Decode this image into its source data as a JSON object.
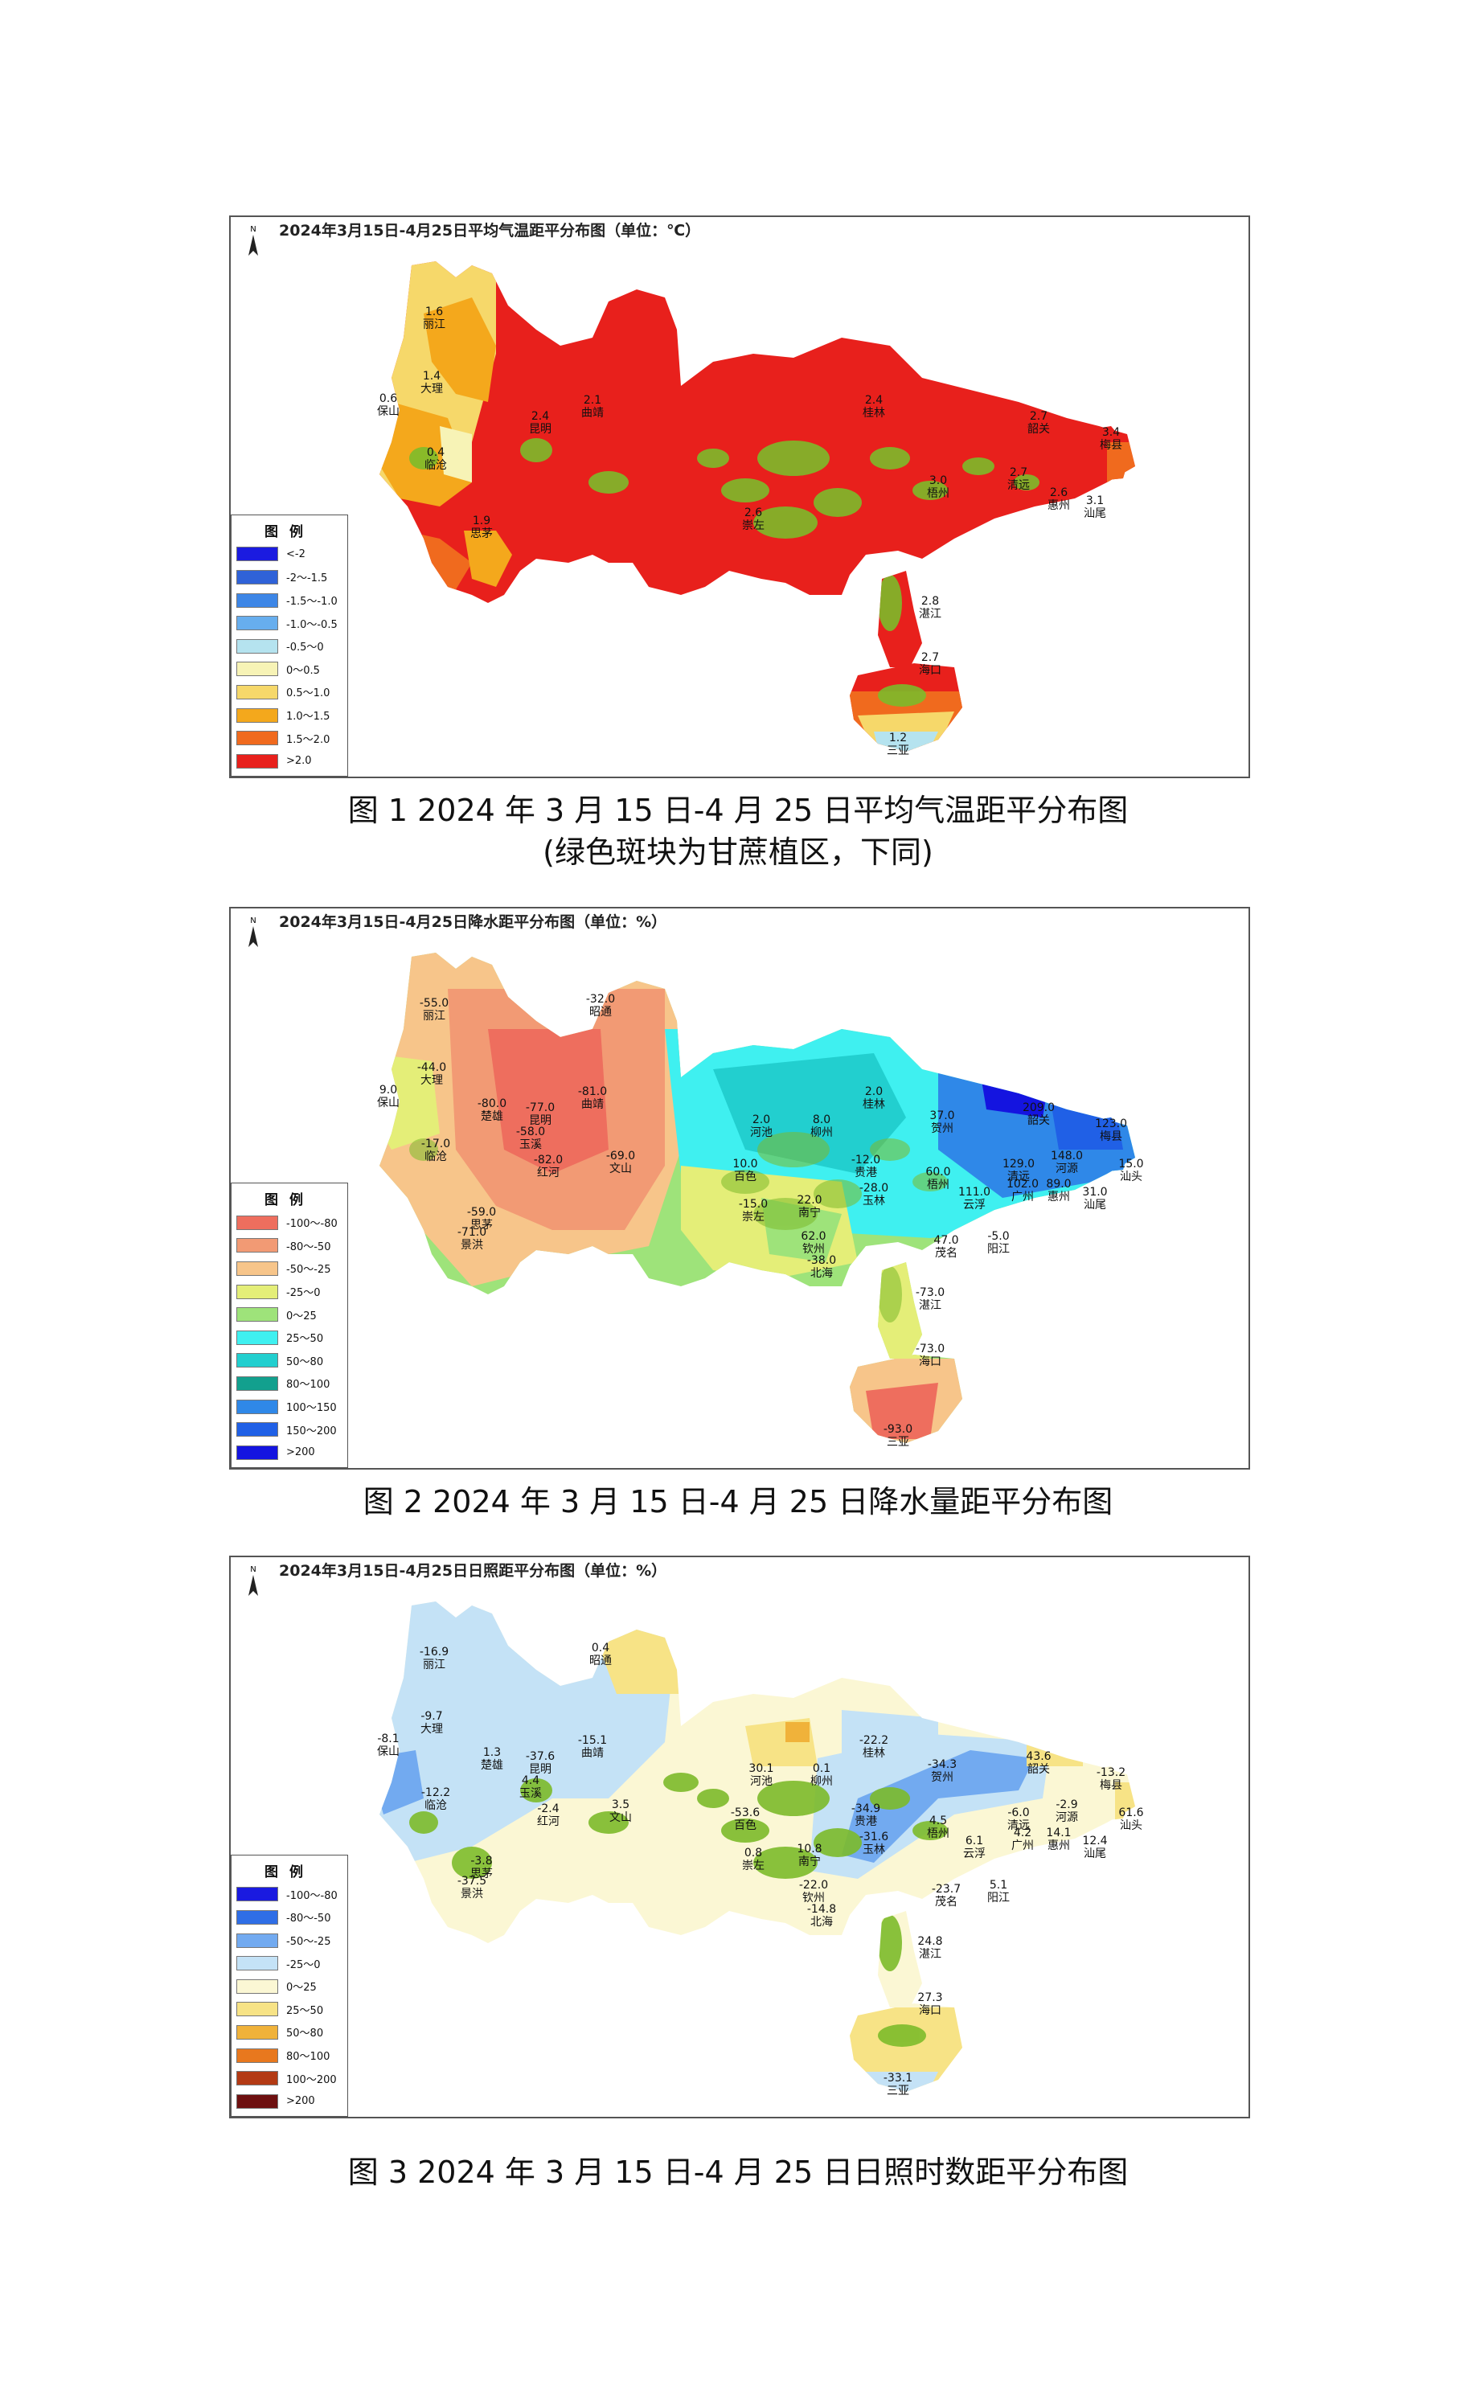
{
  "figures": [
    {
      "id": "temp",
      "map_title": "2024年3月15日-4月25日平均气温距平分布图（单位：℃）",
      "caption_lines": [
        "图 1  2024 年 3 月 15 日-4 月 25 日平均气温距平分布图",
        "(绿色斑块为甘蔗植区，下同)"
      ],
      "north_label": "N",
      "legend_title": "图例",
      "legend": [
        {
          "label": "<-2",
          "color": "#1b1be0"
        },
        {
          "label": "-2～-1.5",
          "color": "#2f62d8"
        },
        {
          "label": "-1.5～-1.0",
          "color": "#3d86e6"
        },
        {
          "label": "-1.0～-0.5",
          "color": "#67aeee"
        },
        {
          "label": "-0.5～0",
          "color": "#b5e3ef"
        },
        {
          "label": "0～0.5",
          "color": "#f7f3b6"
        },
        {
          "label": "0.5～1.0",
          "color": "#f6d86a"
        },
        {
          "label": "1.0～1.5",
          "color": "#f4a81c"
        },
        {
          "label": "1.5～2.0",
          "color": "#f06a1e"
        },
        {
          "label": ">2.0",
          "color": "#e8201c"
        }
      ],
      "stations": [
        {
          "v": "1.6",
          "n": "丽江"
        },
        {
          "v": "1.4",
          "n": "大理"
        },
        {
          "v": "0.6",
          "n": "保山"
        },
        {
          "v": "0.4",
          "n": "临沧"
        },
        {
          "v": "1.9",
          "n": "思茅"
        },
        {
          "v": "2.4",
          "n": "昆明"
        },
        {
          "v": "2.1",
          "n": "曲靖"
        },
        {
          "v": "2.4",
          "n": "桂林"
        },
        {
          "v": "2.6",
          "n": "崇左"
        },
        {
          "v": "3.0",
          "n": "梧州"
        },
        {
          "v": "2.7",
          "n": "韶关"
        },
        {
          "v": "2.7",
          "n": "清远"
        },
        {
          "v": "2.6",
          "n": "惠州"
        },
        {
          "v": "2.8",
          "n": "湛江"
        },
        {
          "v": "3.1",
          "n": "汕尾"
        },
        {
          "v": "3.4",
          "n": "梅县"
        },
        {
          "v": "2.7",
          "n": "海口"
        },
        {
          "v": "1.2",
          "n": "三亚"
        }
      ]
    },
    {
      "id": "precip",
      "map_title": "2024年3月15日-4月25日降水距平分布图（单位：%）",
      "caption_lines": [
        "图 2  2024 年 3 月 15 日-4 月 25 日降水量距平分布图"
      ],
      "north_label": "N",
      "legend_title": "图例",
      "legend": [
        {
          "label": "-100～-80",
          "color": "#ee6e5e"
        },
        {
          "label": "-80～-50",
          "color": "#f29a74"
        },
        {
          "label": "-50～-25",
          "color": "#f7c58a"
        },
        {
          "label": "-25～0",
          "color": "#e4ee78"
        },
        {
          "label": "0～25",
          "color": "#9ee37a"
        },
        {
          "label": "25～50",
          "color": "#3ff0f0"
        },
        {
          "label": "50～80",
          "color": "#22cfcf"
        },
        {
          "label": "80～100",
          "color": "#12a08e"
        },
        {
          "label": "100～150",
          "color": "#2f88e8"
        },
        {
          "label": "150～200",
          "color": "#2060e6"
        },
        {
          "label": ">200",
          "color": "#1414e0"
        }
      ],
      "stations": [
        {
          "v": "-55.0",
          "n": "丽江"
        },
        {
          "v": "-44.0",
          "n": "大理"
        },
        {
          "v": "9.0",
          "n": "保山"
        },
        {
          "v": "-17.0",
          "n": "临沧"
        },
        {
          "v": "-80.0",
          "n": "楚雄"
        },
        {
          "v": "-77.0",
          "n": "昆明"
        },
        {
          "v": "-58.0",
          "n": "玉溪"
        },
        {
          "v": "-81.0",
          "n": "曲靖"
        },
        {
          "v": "-32.0",
          "n": "昭通"
        },
        {
          "v": "-82.0",
          "n": "红河"
        },
        {
          "v": "-69.0",
          "n": "文山"
        },
        {
          "v": "-59.0",
          "n": "思茅"
        },
        {
          "v": "-71.0",
          "n": "景洪"
        },
        {
          "v": "10.0",
          "n": "百色"
        },
        {
          "v": "2.0",
          "n": "河池"
        },
        {
          "v": "8.0",
          "n": "柳州"
        },
        {
          "v": "2.0",
          "n": "桂林"
        },
        {
          "v": "37.0",
          "n": "贺州"
        },
        {
          "v": "209.0",
          "n": "韶关"
        },
        {
          "v": "123.0",
          "n": "梅县"
        },
        {
          "v": "-15.0",
          "n": "崇左"
        },
        {
          "v": "22.0",
          "n": "南宁"
        },
        {
          "v": "-12.0",
          "n": "贵港"
        },
        {
          "v": "-28.0",
          "n": "玉林"
        },
        {
          "v": "60.0",
          "n": "梧州"
        },
        {
          "v": "111.0",
          "n": "云浮"
        },
        {
          "v": "129.0",
          "n": "清远"
        },
        {
          "v": "148.0",
          "n": "河源"
        },
        {
          "v": "102.0",
          "n": "广州"
        },
        {
          "v": "89.0",
          "n": "惠州"
        },
        {
          "v": "31.0",
          "n": "汕尾"
        },
        {
          "v": "15.0",
          "n": "汕头"
        },
        {
          "v": "62.0",
          "n": "钦州"
        },
        {
          "v": "-38.0",
          "n": "北海"
        },
        {
          "v": "47.0",
          "n": "茂名"
        },
        {
          "v": "-5.0",
          "n": "阳江"
        },
        {
          "v": "-73.0",
          "n": "湛江"
        },
        {
          "v": "-73.0",
          "n": "海口"
        },
        {
          "v": "-93.0",
          "n": "三亚"
        }
      ]
    },
    {
      "id": "sun",
      "map_title": "2024年3月15日-4月25日日照距平分布图（单位：%）",
      "caption_lines": [
        "图 3  2024 年 3 月 15 日-4 月 25 日日照时数距平分布图"
      ],
      "north_label": "N",
      "legend_title": "图例",
      "legend": [
        {
          "label": "-100～-80",
          "color": "#1a1ae0"
        },
        {
          "label": "-80～-50",
          "color": "#2f6ee6"
        },
        {
          "label": "-50～-25",
          "color": "#72aaf0"
        },
        {
          "label": "-25～0",
          "color": "#c4e2f6"
        },
        {
          "label": "0～25",
          "color": "#fbf7d4"
        },
        {
          "label": "25～50",
          "color": "#f7e386"
        },
        {
          "label": "50～80",
          "color": "#f0b23a"
        },
        {
          "label": "80～100",
          "color": "#e8781e"
        },
        {
          "label": "100～200",
          "color": "#b33a14"
        },
        {
          "label": ">200",
          "color": "#6e1010"
        }
      ],
      "stations": [
        {
          "v": "-16.9",
          "n": "丽江"
        },
        {
          "v": "-9.7",
          "n": "大理"
        },
        {
          "v": "-8.1",
          "n": "保山"
        },
        {
          "v": "-12.2",
          "n": "临沧"
        },
        {
          "v": "1.3",
          "n": "楚雄"
        },
        {
          "v": "-37.6",
          "n": "昆明"
        },
        {
          "v": "4.4",
          "n": "玉溪"
        },
        {
          "v": "-15.1",
          "n": "曲靖"
        },
        {
          "v": "0.4",
          "n": "昭通"
        },
        {
          "v": "-2.4",
          "n": "红河"
        },
        {
          "v": "3.5",
          "n": "文山"
        },
        {
          "v": "-3.8",
          "n": "思茅"
        },
        {
          "v": "-37.5",
          "n": "景洪"
        },
        {
          "v": "-53.6",
          "n": "百色"
        },
        {
          "v": "30.1",
          "n": "河池"
        },
        {
          "v": "0.1",
          "n": "柳州"
        },
        {
          "v": "-22.2",
          "n": "桂林"
        },
        {
          "v": "-34.3",
          "n": "贺州"
        },
        {
          "v": "43.6",
          "n": "韶关"
        },
        {
          "v": "-13.2",
          "n": "梅县"
        },
        {
          "v": "0.8",
          "n": "崇左"
        },
        {
          "v": "10.8",
          "n": "南宁"
        },
        {
          "v": "-34.9",
          "n": "贵港"
        },
        {
          "v": "-31.6",
          "n": "玉林"
        },
        {
          "v": "4.5",
          "n": "梧州"
        },
        {
          "v": "6.1",
          "n": "云浮"
        },
        {
          "v": "-6.0",
          "n": "清远"
        },
        {
          "v": "-2.9",
          "n": "河源"
        },
        {
          "v": "4.2",
          "n": "广州"
        },
        {
          "v": "14.1",
          "n": "惠州"
        },
        {
          "v": "12.4",
          "n": "汕尾"
        },
        {
          "v": "61.6",
          "n": "汕头"
        },
        {
          "v": "-22.0",
          "n": "钦州"
        },
        {
          "v": "-14.8",
          "n": "北海"
        },
        {
          "v": "-23.7",
          "n": "茂名"
        },
        {
          "v": "5.1",
          "n": "阳江"
        },
        {
          "v": "24.8",
          "n": "湛江"
        },
        {
          "v": "27.3",
          "n": "海口"
        },
        {
          "v": "-33.1",
          "n": "三亚"
        }
      ]
    }
  ]
}
